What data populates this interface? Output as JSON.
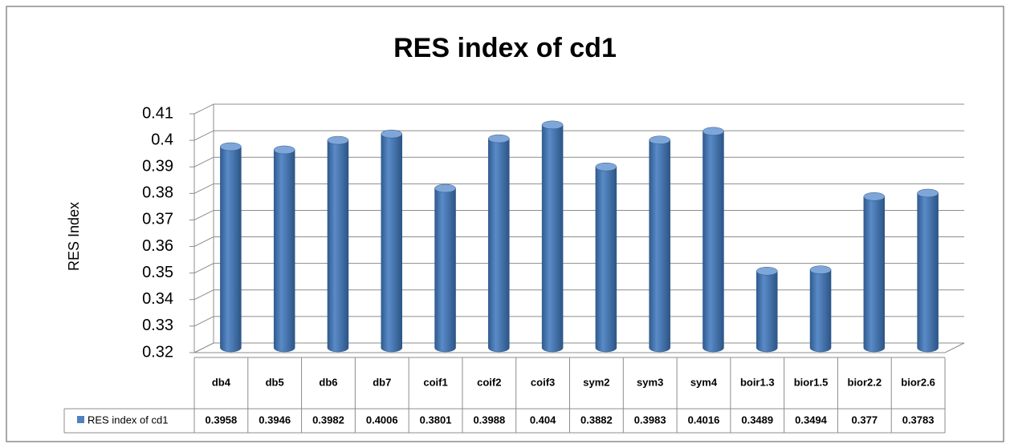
{
  "chart_data": {
    "type": "bar",
    "title": "RES index of cd1",
    "y_label": "RES Index",
    "categories": [
      "db4",
      "db5",
      "db6",
      "db7",
      "coif1",
      "coif2",
      "coif3",
      "sym2",
      "sym3",
      "sym4",
      "boir1.3",
      "bior1.5",
      "bior2.2",
      "bior2.6"
    ],
    "series": [
      {
        "name": "RES index of cd1",
        "color": "#4f81bd",
        "values": [
          0.3958,
          0.3946,
          0.3982,
          0.4006,
          0.3801,
          0.3988,
          0.404,
          0.3882,
          0.3983,
          0.4016,
          0.3489,
          0.3494,
          0.377,
          0.3783
        ]
      }
    ],
    "ylim": [
      0.32,
      0.41
    ],
    "yticks": [
      0.32,
      0.33,
      0.34,
      0.35,
      0.36,
      0.37,
      0.38,
      0.39,
      0.4,
      0.41
    ],
    "grid": true,
    "data_table": true
  }
}
